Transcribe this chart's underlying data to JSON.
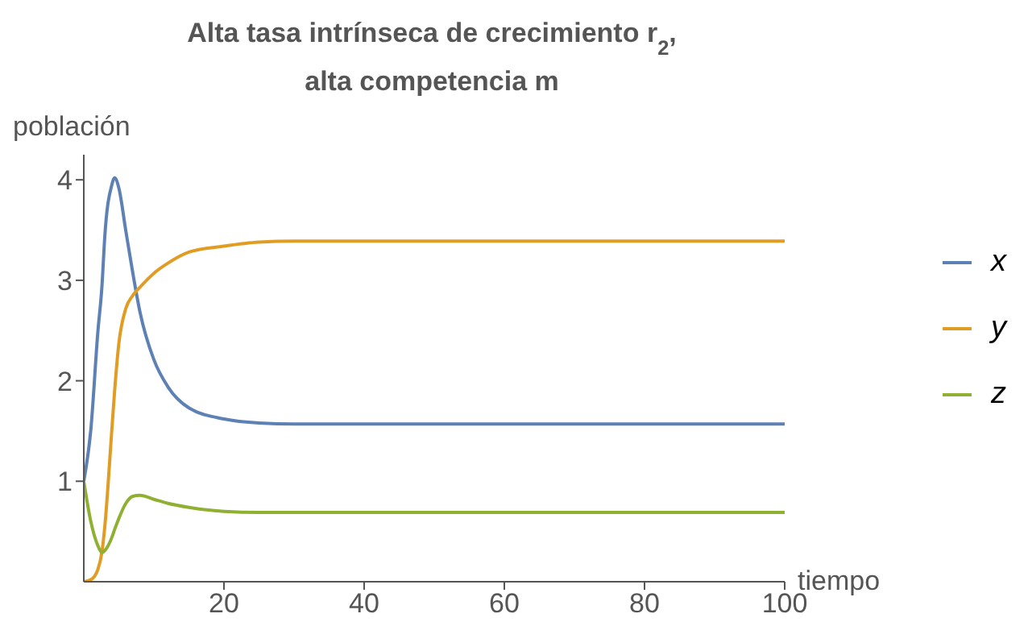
{
  "chart_data": {
    "type": "line",
    "title": "Alta tasa intrínseca de crecimiento r$_{2}$,\nalta competencia m",
    "xlabel": "tiempo",
    "ylabel": "población",
    "x": [
      0,
      1,
      2,
      2.6,
      3,
      4,
      4.4,
      5,
      6,
      7,
      8,
      10,
      12,
      15,
      20,
      25,
      30,
      40,
      60,
      80,
      100
    ],
    "series": [
      {
        "name": "x",
        "color": "#5e81b5",
        "values": [
          1,
          1.51,
          2.48,
          2.95,
          3.44,
          3.95,
          4.02,
          3.92,
          3.49,
          3.07,
          2.69,
          2.21,
          1.94,
          1.73,
          1.62,
          1.58,
          1.57,
          1.57,
          1.57,
          1.57,
          1.57
        ]
      },
      {
        "name": "y",
        "color": "#e19c24",
        "values": [
          0,
          0.02,
          0.12,
          0.3,
          0.55,
          1.51,
          1.9,
          2.37,
          2.72,
          2.85,
          2.93,
          3.07,
          3.17,
          3.28,
          3.34,
          3.38,
          3.39,
          3.39,
          3.39,
          3.39,
          3.39
        ]
      },
      {
        "name": "z",
        "color": "#8fb032",
        "values": [
          1,
          0.6,
          0.36,
          0.29,
          0.31,
          0.44,
          0.52,
          0.63,
          0.78,
          0.85,
          0.86,
          0.82,
          0.78,
          0.74,
          0.7,
          0.69,
          0.69,
          0.69,
          0.69,
          0.69,
          0.69
        ]
      }
    ],
    "xlim": [
      0,
      100
    ],
    "xticks": [
      20,
      40,
      60,
      80,
      100
    ],
    "ylim": [
      0,
      4.25
    ],
    "yticks": [
      1,
      2,
      3,
      4
    ],
    "grid": false,
    "legend": "right",
    "marker": "none",
    "line_style": "solid"
  }
}
